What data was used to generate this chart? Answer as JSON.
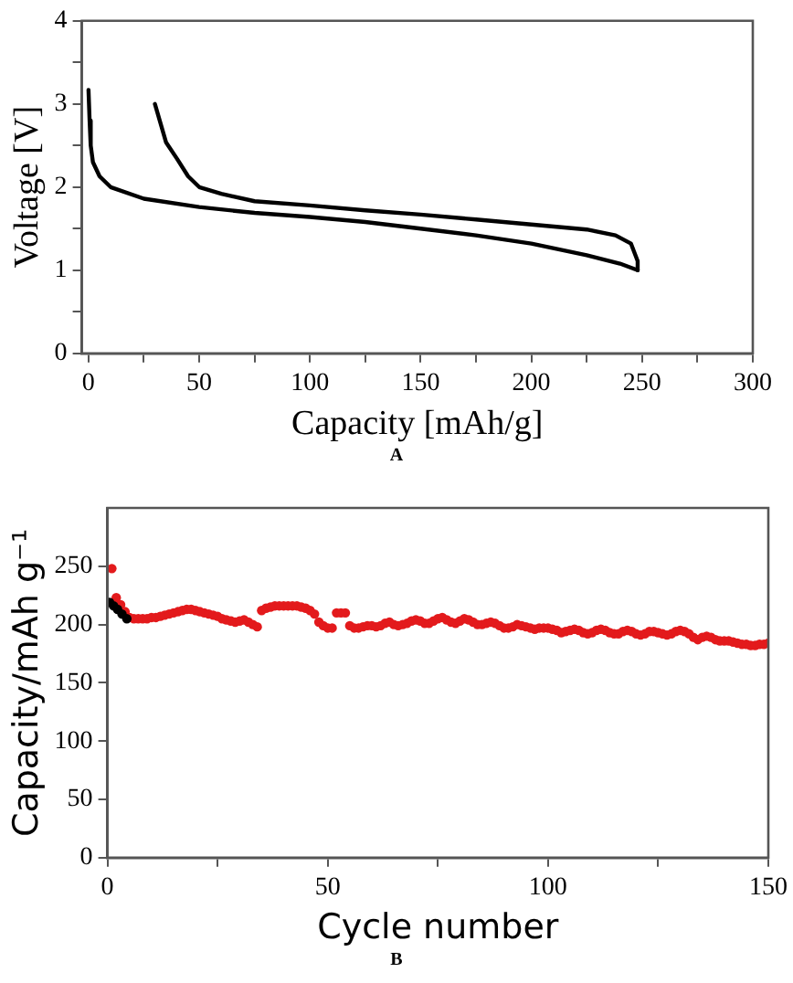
{
  "chart_data": [
    {
      "type": "line",
      "xlabel": "Capacity [mAh/g]",
      "ylabel": "Voltage [V]",
      "annotations": [
        "A"
      ],
      "xlim": [
        -3,
        300
      ],
      "ylim": [
        0,
        4
      ],
      "xticks": [
        0,
        {
          "value": 25,
          "label": null
        },
        50,
        {
          "value": 75,
          "label": null
        },
        100,
        {
          "value": 125,
          "label": null
        },
        150,
        {
          "value": 175,
          "label": null
        },
        200,
        {
          "value": 225,
          "label": null
        },
        250,
        {
          "value": 275,
          "label": null
        },
        300
      ],
      "yticks": [
        0,
        {
          "value": 0.5,
          "label": null
        },
        1,
        {
          "value": 1.5,
          "label": null
        },
        2,
        {
          "value": 2.5,
          "label": null
        },
        3,
        {
          "value": 3.5,
          "label": null
        },
        4
      ],
      "marker": "none",
      "line_style": "solid",
      "series": [
        {
          "color": "#000000",
          "x": [
            0,
            0.5,
            1,
            2,
            5,
            10,
            25,
            50,
            75,
            100,
            125,
            150,
            175,
            200,
            225,
            240,
            248
          ],
          "values": [
            3.17,
            2.8,
            2.5,
            2.3,
            2.13,
            2.0,
            1.86,
            1.76,
            1.69,
            1.64,
            1.58,
            1.5,
            1.42,
            1.32,
            1.18,
            1.08,
            1.0
          ]
        },
        {
          "color": "#000000",
          "x": [
            248,
            248,
            245,
            238,
            225,
            200,
            175,
            150,
            125,
            100,
            75,
            60,
            50,
            45,
            40,
            35,
            30
          ],
          "values": [
            1.0,
            1.11,
            1.32,
            1.42,
            1.49,
            1.55,
            1.61,
            1.67,
            1.72,
            1.78,
            1.83,
            1.92,
            2.0,
            2.13,
            2.34,
            2.54,
            3.0
          ]
        }
      ]
    },
    {
      "type": "scatter",
      "xlabel": "Cycle number",
      "ylabel": "Capacity/mAh g⁻¹",
      "annotations": [
        "B"
      ],
      "xlim": [
        0,
        150
      ],
      "ylim": [
        0,
        300
      ],
      "xticks": [
        0,
        {
          "value": 25,
          "label": null
        },
        50,
        {
          "value": 75,
          "label": null
        },
        100,
        {
          "value": 125,
          "label": null
        },
        150
      ],
      "yticks": [
        0,
        50,
        100,
        150,
        200,
        250
      ],
      "marker": "circle",
      "series": [
        {
          "color": "#e31a1c",
          "x": [
            1,
            2,
            3,
            4,
            5,
            6,
            7,
            8,
            9,
            10,
            11,
            12,
            13,
            14,
            15,
            16,
            17,
            18,
            19,
            20,
            21,
            22,
            23,
            24,
            25,
            26,
            27,
            28,
            29,
            30,
            31,
            32,
            33,
            34,
            35,
            36,
            37,
            38,
            39,
            40,
            41,
            42,
            43,
            44,
            45,
            46,
            47,
            48,
            49,
            50,
            51,
            52,
            53,
            54,
            55,
            56,
            57,
            58,
            59,
            60,
            61,
            62,
            63,
            64,
            65,
            66,
            67,
            68,
            69,
            70,
            71,
            72,
            73,
            74,
            75,
            76,
            77,
            78,
            79,
            80,
            81,
            82,
            83,
            84,
            85,
            86,
            87,
            88,
            89,
            90,
            91,
            92,
            93,
            94,
            95,
            96,
            97,
            98,
            99,
            100,
            101,
            102,
            103,
            104,
            105,
            106,
            107,
            108,
            109,
            110,
            111,
            112,
            113,
            114,
            115,
            116,
            117,
            118,
            119,
            120,
            121,
            122,
            123,
            124,
            125,
            126,
            127,
            128,
            129,
            130,
            131,
            132,
            133,
            134,
            135,
            136,
            137,
            138,
            139,
            140,
            141,
            142,
            143,
            144,
            145,
            146,
            147,
            148,
            149,
            150
          ],
          "values": [
            248,
            223,
            217,
            211,
            206,
            205,
            205,
            205,
            205,
            206,
            206,
            207,
            208,
            209,
            210,
            211,
            212,
            213,
            213,
            212,
            211,
            210,
            209,
            208,
            207,
            205,
            204,
            203,
            202,
            203,
            204,
            202,
            200,
            198,
            212,
            214,
            215,
            216,
            216,
            216,
            216,
            216,
            216,
            215,
            214,
            212,
            209,
            202,
            199,
            197,
            197,
            210,
            210,
            210,
            199,
            197,
            197,
            198,
            199,
            199,
            198,
            199,
            201,
            202,
            200,
            199,
            200,
            201,
            203,
            204,
            203,
            201,
            201,
            203,
            205,
            206,
            204,
            202,
            201,
            203,
            205,
            204,
            202,
            200,
            200,
            201,
            202,
            201,
            199,
            197,
            197,
            198,
            200,
            199,
            198,
            197,
            196,
            197,
            197,
            197,
            196,
            195,
            193,
            194,
            195,
            196,
            195,
            193,
            192,
            193,
            195,
            196,
            195,
            193,
            192,
            192,
            194,
            195,
            194,
            192,
            191,
            192,
            194,
            194,
            193,
            192,
            191,
            192,
            194,
            195,
            194,
            192,
            189,
            187,
            189,
            190,
            189,
            187,
            186,
            186,
            186,
            185,
            184,
            183,
            183,
            182,
            182,
            183,
            183,
            184
          ]
        },
        {
          "color": "#000000",
          "x": [
            0.5,
            1.4,
            2.3,
            3.3,
            4.4
          ],
          "values": [
            219,
            216,
            213,
            209,
            205
          ]
        }
      ]
    }
  ]
}
